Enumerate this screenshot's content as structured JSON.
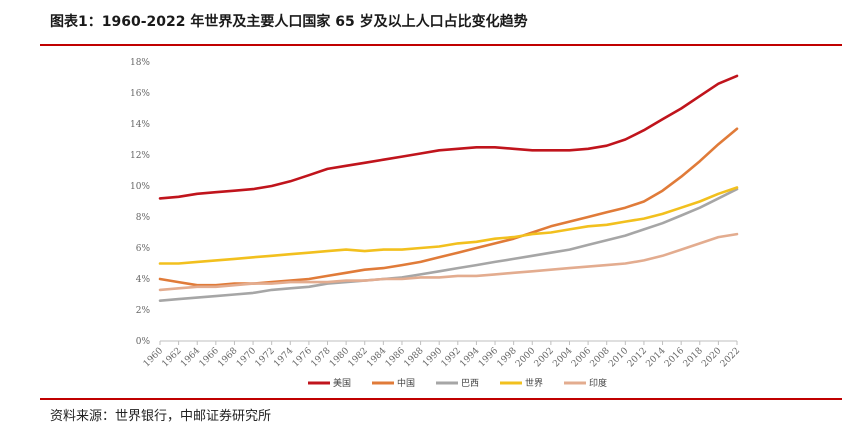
{
  "title": "图表1：1960-2022 年世界及主要人口国家 65 岁及以上人口占比变化趋势",
  "source": "资料来源：世界银行，中邮证券研究所",
  "chart_data": {
    "type": "line",
    "title": "图表1：1960-2022 年世界及主要人口国家 65 岁及以上人口占比变化趋势",
    "xlabel": "",
    "ylabel": "",
    "ylim": [
      0,
      18
    ],
    "y_ticks": [
      "0%",
      "2%",
      "4%",
      "6%",
      "8%",
      "10%",
      "12%",
      "14%",
      "16%",
      "18%"
    ],
    "x_ticks": [
      "1960",
      "1962",
      "1964",
      "1966",
      "1968",
      "1970",
      "1972",
      "1974",
      "1976",
      "1978",
      "1980",
      "1982",
      "1984",
      "1986",
      "1988",
      "1990",
      "1992",
      "1994",
      "1996",
      "1998",
      "2000",
      "2002",
      "2004",
      "2006",
      "2008",
      "2010",
      "2012",
      "2014",
      "2016",
      "2018",
      "2020",
      "2022"
    ],
    "grid": false,
    "legend_position": "bottom",
    "x": [
      1960,
      1962,
      1964,
      1966,
      1968,
      1970,
      1972,
      1974,
      1976,
      1978,
      1980,
      1982,
      1984,
      1986,
      1988,
      1990,
      1992,
      1994,
      1996,
      1998,
      2000,
      2002,
      2004,
      2006,
      2008,
      2010,
      2012,
      2014,
      2016,
      2018,
      2020,
      2022
    ],
    "series": [
      {
        "name": "美国",
        "color": "#c0141c",
        "values": [
          9.2,
          9.3,
          9.5,
          9.6,
          9.7,
          9.8,
          10.0,
          10.3,
          10.7,
          11.1,
          11.3,
          11.5,
          11.7,
          11.9,
          12.1,
          12.3,
          12.4,
          12.5,
          12.5,
          12.4,
          12.3,
          12.3,
          12.3,
          12.4,
          12.6,
          13.0,
          13.6,
          14.3,
          15.0,
          15.8,
          16.6,
          17.1
        ]
      },
      {
        "name": "中国",
        "color": "#e07b39",
        "values": [
          4.0,
          3.8,
          3.6,
          3.6,
          3.7,
          3.7,
          3.8,
          3.9,
          4.0,
          4.2,
          4.4,
          4.6,
          4.7,
          4.9,
          5.1,
          5.4,
          5.7,
          6.0,
          6.3,
          6.6,
          7.0,
          7.4,
          7.7,
          8.0,
          8.3,
          8.6,
          9.0,
          9.7,
          10.6,
          11.6,
          12.7,
          13.7
        ]
      },
      {
        "name": "巴西",
        "color": "#a6a6a6",
        "values": [
          2.6,
          2.7,
          2.8,
          2.9,
          3.0,
          3.1,
          3.3,
          3.4,
          3.5,
          3.7,
          3.8,
          3.9,
          4.0,
          4.1,
          4.3,
          4.5,
          4.7,
          4.9,
          5.1,
          5.3,
          5.5,
          5.7,
          5.9,
          6.2,
          6.5,
          6.8,
          7.2,
          7.6,
          8.1,
          8.6,
          9.2,
          9.8
        ]
      },
      {
        "name": "世界",
        "color": "#f2c01e",
        "values": [
          5.0,
          5.0,
          5.1,
          5.2,
          5.3,
          5.4,
          5.5,
          5.6,
          5.7,
          5.8,
          5.9,
          5.8,
          5.9,
          5.9,
          6.0,
          6.1,
          6.3,
          6.4,
          6.6,
          6.7,
          6.9,
          7.0,
          7.2,
          7.4,
          7.5,
          7.7,
          7.9,
          8.2,
          8.6,
          9.0,
          9.5,
          9.9
        ]
      },
      {
        "name": "印度",
        "color": "#e3ac8f",
        "values": [
          3.3,
          3.4,
          3.5,
          3.5,
          3.6,
          3.7,
          3.7,
          3.8,
          3.8,
          3.8,
          3.9,
          3.9,
          4.0,
          4.0,
          4.1,
          4.1,
          4.2,
          4.2,
          4.3,
          4.4,
          4.5,
          4.6,
          4.7,
          4.8,
          4.9,
          5.0,
          5.2,
          5.5,
          5.9,
          6.3,
          6.7,
          6.9
        ]
      }
    ]
  }
}
